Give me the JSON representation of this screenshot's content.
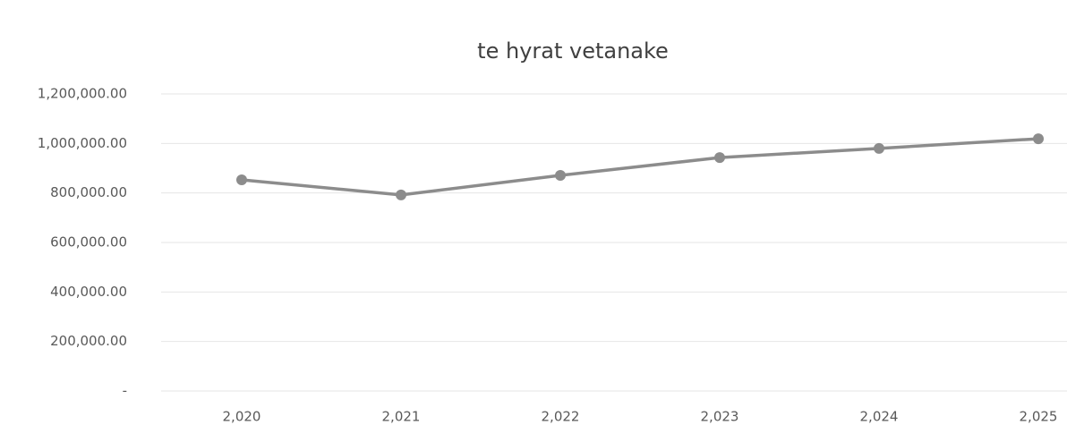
{
  "chart_data": {
    "type": "line",
    "title": "te hyrat vetanake",
    "categories": [
      "2,020",
      "2,021",
      "2,022",
      "2,023",
      "2,024",
      "2,025"
    ],
    "series": [
      {
        "color": "#8c8c8c",
        "values": [
          853000,
          792000,
          871000,
          943000,
          980000,
          1019000
        ]
      }
    ],
    "ylim": [
      0,
      1200000
    ],
    "yticks": [
      {
        "value": 0,
        "label": "-"
      },
      {
        "value": 200000,
        "label": "200,000.00"
      },
      {
        "value": 400000,
        "label": "400,000.00"
      },
      {
        "value": 600000,
        "label": "600,000.00"
      },
      {
        "value": 800000,
        "label": "800,000.00"
      },
      {
        "value": 1000000,
        "label": "1,000,000.00"
      },
      {
        "value": 1200000,
        "label": "1,200,000.00"
      }
    ],
    "grid": true
  }
}
